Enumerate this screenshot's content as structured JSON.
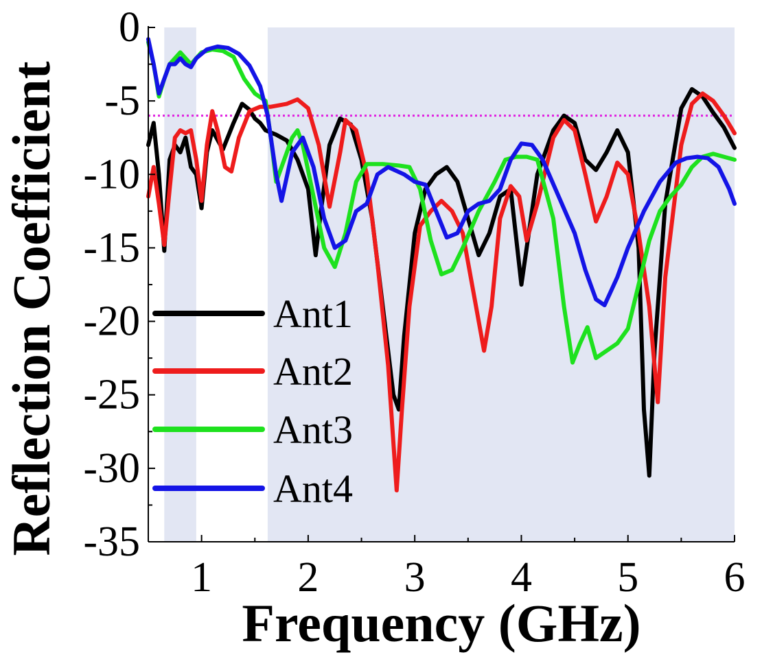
{
  "chart_data": {
    "type": "line",
    "xlabel": "Frequency (GHz)",
    "ylabel": "Reflection Coefficient",
    "xlim": [
      0.5,
      6
    ],
    "ylim": [
      -35,
      0
    ],
    "xticks": [
      1,
      2,
      3,
      4,
      5,
      6
    ],
    "yticks": [
      0,
      -5,
      -10,
      -15,
      -20,
      -25,
      -30,
      -35
    ],
    "xtick_labels": [
      "1",
      "2",
      "3",
      "4",
      "5",
      "6"
    ],
    "ytick_labels": [
      "0",
      "-5",
      "-10",
      "-15",
      "-20",
      "-25",
      "-30",
      "-35"
    ],
    "threshold": {
      "value": -6,
      "color": "#e020e0",
      "style": "dotted"
    },
    "shaded_bands": [
      {
        "from": 0.65,
        "to": 0.95,
        "color": "#e2e6f3"
      },
      {
        "from": 1.62,
        "to": 6.0,
        "color": "#e2e6f3"
      }
    ],
    "legend": {
      "position": "lower-left"
    },
    "series": [
      {
        "name": "Ant1",
        "color": "#000000",
        "points": [
          [
            0.5,
            -8
          ],
          [
            0.55,
            -6.5
          ],
          [
            0.6,
            -10
          ],
          [
            0.65,
            -15.2
          ],
          [
            0.7,
            -9
          ],
          [
            0.75,
            -8
          ],
          [
            0.8,
            -8.5
          ],
          [
            0.85,
            -7.5
          ],
          [
            0.9,
            -9.5
          ],
          [
            0.95,
            -10
          ],
          [
            1.0,
            -12.3
          ],
          [
            1.05,
            -8.5
          ],
          [
            1.1,
            -7
          ],
          [
            1.2,
            -8.3
          ],
          [
            1.3,
            -6.5
          ],
          [
            1.38,
            -5.2
          ],
          [
            1.45,
            -5.6
          ],
          [
            1.5,
            -6.2
          ],
          [
            1.55,
            -6.5
          ],
          [
            1.6,
            -7
          ],
          [
            1.7,
            -7.3
          ],
          [
            1.8,
            -7.7
          ],
          [
            1.9,
            -9
          ],
          [
            2.0,
            -11
          ],
          [
            2.07,
            -15.5
          ],
          [
            2.12,
            -12.5
          ],
          [
            2.2,
            -8
          ],
          [
            2.3,
            -6.2
          ],
          [
            2.4,
            -6.6
          ],
          [
            2.5,
            -9
          ],
          [
            2.6,
            -13
          ],
          [
            2.7,
            -19
          ],
          [
            2.8,
            -25
          ],
          [
            2.85,
            -26
          ],
          [
            2.9,
            -21
          ],
          [
            3.0,
            -14
          ],
          [
            3.1,
            -11
          ],
          [
            3.2,
            -10
          ],
          [
            3.3,
            -9.5
          ],
          [
            3.4,
            -10.5
          ],
          [
            3.5,
            -13
          ],
          [
            3.6,
            -15.5
          ],
          [
            3.7,
            -14
          ],
          [
            3.8,
            -11.5
          ],
          [
            3.9,
            -11
          ],
          [
            4.0,
            -17.5
          ],
          [
            4.05,
            -15
          ],
          [
            4.15,
            -10
          ],
          [
            4.3,
            -7
          ],
          [
            4.4,
            -6
          ],
          [
            4.5,
            -6.5
          ],
          [
            4.6,
            -9
          ],
          [
            4.7,
            -9.7
          ],
          [
            4.8,
            -8.5
          ],
          [
            4.9,
            -7
          ],
          [
            5.0,
            -8.5
          ],
          [
            5.1,
            -15
          ],
          [
            5.15,
            -26
          ],
          [
            5.2,
            -30.5
          ],
          [
            5.25,
            -22
          ],
          [
            5.35,
            -12
          ],
          [
            5.5,
            -5.5
          ],
          [
            5.6,
            -4.2
          ],
          [
            5.7,
            -4.7
          ],
          [
            5.8,
            -5.8
          ],
          [
            5.9,
            -6.8
          ],
          [
            6.0,
            -8.2
          ]
        ]
      },
      {
        "name": "Ant2",
        "color": "#ee1c1c",
        "points": [
          [
            0.5,
            -11.5
          ],
          [
            0.55,
            -9.5
          ],
          [
            0.6,
            -12
          ],
          [
            0.65,
            -14.8
          ],
          [
            0.7,
            -11
          ],
          [
            0.75,
            -7.5
          ],
          [
            0.8,
            -7
          ],
          [
            0.85,
            -7.2
          ],
          [
            0.9,
            -7
          ],
          [
            0.95,
            -9
          ],
          [
            1.0,
            -11.8
          ],
          [
            1.05,
            -8
          ],
          [
            1.1,
            -5.7
          ],
          [
            1.15,
            -7
          ],
          [
            1.22,
            -9.5
          ],
          [
            1.28,
            -9.8
          ],
          [
            1.35,
            -7.5
          ],
          [
            1.45,
            -5.7
          ],
          [
            1.55,
            -5.4
          ],
          [
            1.65,
            -5.4
          ],
          [
            1.8,
            -5.2
          ],
          [
            1.9,
            -4.9
          ],
          [
            2.0,
            -5.5
          ],
          [
            2.1,
            -8
          ],
          [
            2.2,
            -12.2
          ],
          [
            2.3,
            -8.5
          ],
          [
            2.35,
            -6.3
          ],
          [
            2.45,
            -7
          ],
          [
            2.55,
            -10
          ],
          [
            2.65,
            -16
          ],
          [
            2.75,
            -23
          ],
          [
            2.83,
            -31.5
          ],
          [
            2.88,
            -26
          ],
          [
            2.95,
            -19
          ],
          [
            3.05,
            -13.5
          ],
          [
            3.15,
            -12.5
          ],
          [
            3.25,
            -11.8
          ],
          [
            3.35,
            -12.5
          ],
          [
            3.45,
            -14
          ],
          [
            3.55,
            -18
          ],
          [
            3.65,
            -22
          ],
          [
            3.72,
            -19
          ],
          [
            3.8,
            -13
          ],
          [
            3.9,
            -10.8
          ],
          [
            3.98,
            -11.5
          ],
          [
            4.05,
            -14.5
          ],
          [
            4.15,
            -12
          ],
          [
            4.3,
            -7.5
          ],
          [
            4.4,
            -6.3
          ],
          [
            4.5,
            -7
          ],
          [
            4.6,
            -10
          ],
          [
            4.7,
            -13.2
          ],
          [
            4.8,
            -11.5
          ],
          [
            4.9,
            -9.2
          ],
          [
            5.0,
            -10
          ],
          [
            5.1,
            -14
          ],
          [
            5.2,
            -19
          ],
          [
            5.28,
            -25.5
          ],
          [
            5.35,
            -17
          ],
          [
            5.5,
            -8
          ],
          [
            5.6,
            -5.2
          ],
          [
            5.7,
            -4.5
          ],
          [
            5.8,
            -5
          ],
          [
            5.9,
            -6
          ],
          [
            6.0,
            -7.2
          ]
        ]
      },
      {
        "name": "Ant3",
        "color": "#1ee11e",
        "points": [
          [
            0.5,
            -1
          ],
          [
            0.55,
            -2.5
          ],
          [
            0.6,
            -4.7
          ],
          [
            0.65,
            -3.5
          ],
          [
            0.7,
            -2.5
          ],
          [
            0.8,
            -1.7
          ],
          [
            0.85,
            -2.1
          ],
          [
            0.9,
            -2.5
          ],
          [
            1.0,
            -1.7
          ],
          [
            1.1,
            -1.5
          ],
          [
            1.2,
            -1.6
          ],
          [
            1.3,
            -2
          ],
          [
            1.4,
            -3.5
          ],
          [
            1.5,
            -4.5
          ],
          [
            1.6,
            -5
          ],
          [
            1.65,
            -7.5
          ],
          [
            1.7,
            -10.5
          ],
          [
            1.75,
            -9.5
          ],
          [
            1.85,
            -7.5
          ],
          [
            1.9,
            -7
          ],
          [
            1.95,
            -8
          ],
          [
            2.05,
            -11.5
          ],
          [
            2.15,
            -15
          ],
          [
            2.25,
            -16.3
          ],
          [
            2.35,
            -14
          ],
          [
            2.45,
            -10.5
          ],
          [
            2.55,
            -9.3
          ],
          [
            2.7,
            -9.3
          ],
          [
            2.85,
            -9.4
          ],
          [
            2.95,
            -9.5
          ],
          [
            3.05,
            -11
          ],
          [
            3.15,
            -14.5
          ],
          [
            3.25,
            -16.8
          ],
          [
            3.35,
            -16.5
          ],
          [
            3.45,
            -15
          ],
          [
            3.6,
            -12.5
          ],
          [
            3.75,
            -10.5
          ],
          [
            3.85,
            -9
          ],
          [
            3.95,
            -8.8
          ],
          [
            4.05,
            -8.8
          ],
          [
            4.15,
            -9
          ],
          [
            4.3,
            -13
          ],
          [
            4.4,
            -19
          ],
          [
            4.48,
            -22.8
          ],
          [
            4.55,
            -21.5
          ],
          [
            4.62,
            -20.4
          ],
          [
            4.7,
            -22.5
          ],
          [
            4.8,
            -22
          ],
          [
            4.9,
            -21.5
          ],
          [
            5.0,
            -20.5
          ],
          [
            5.1,
            -17.5
          ],
          [
            5.2,
            -14.5
          ],
          [
            5.3,
            -12.5
          ],
          [
            5.4,
            -11.5
          ],
          [
            5.5,
            -10.7
          ],
          [
            5.6,
            -9.5
          ],
          [
            5.7,
            -8.8
          ],
          [
            5.8,
            -8.6
          ],
          [
            5.9,
            -8.8
          ],
          [
            6.0,
            -9
          ]
        ]
      },
      {
        "name": "Ant4",
        "color": "#1414e6",
        "points": [
          [
            0.5,
            -0.8
          ],
          [
            0.55,
            -2.5
          ],
          [
            0.6,
            -4.5
          ],
          [
            0.65,
            -3.5
          ],
          [
            0.7,
            -2.5
          ],
          [
            0.75,
            -2.5
          ],
          [
            0.8,
            -2.1
          ],
          [
            0.85,
            -2.5
          ],
          [
            0.9,
            -2.7
          ],
          [
            0.95,
            -2.1
          ],
          [
            1.05,
            -1.5
          ],
          [
            1.15,
            -1.3
          ],
          [
            1.25,
            -1.4
          ],
          [
            1.35,
            -1.8
          ],
          [
            1.45,
            -2.6
          ],
          [
            1.55,
            -4
          ],
          [
            1.62,
            -6
          ],
          [
            1.7,
            -10
          ],
          [
            1.75,
            -11.8
          ],
          [
            1.85,
            -8.5
          ],
          [
            1.95,
            -7.5
          ],
          [
            2.05,
            -9.5
          ],
          [
            2.15,
            -13
          ],
          [
            2.25,
            -15
          ],
          [
            2.35,
            -14.5
          ],
          [
            2.45,
            -12.5
          ],
          [
            2.55,
            -12
          ],
          [
            2.65,
            -10
          ],
          [
            2.75,
            -9.5
          ],
          [
            2.9,
            -10
          ],
          [
            3.0,
            -10.5
          ],
          [
            3.1,
            -10.7
          ],
          [
            3.2,
            -12.5
          ],
          [
            3.3,
            -14.3
          ],
          [
            3.4,
            -14
          ],
          [
            3.5,
            -12.5
          ],
          [
            3.6,
            -12
          ],
          [
            3.7,
            -11.8
          ],
          [
            3.8,
            -11
          ],
          [
            3.9,
            -9
          ],
          [
            4.0,
            -7.9
          ],
          [
            4.1,
            -8
          ],
          [
            4.2,
            -9
          ],
          [
            4.35,
            -11.5
          ],
          [
            4.5,
            -14
          ],
          [
            4.6,
            -16.5
          ],
          [
            4.7,
            -18.5
          ],
          [
            4.78,
            -18.9
          ],
          [
            4.9,
            -17
          ],
          [
            5.0,
            -15
          ],
          [
            5.15,
            -12.5
          ],
          [
            5.3,
            -10.5
          ],
          [
            5.45,
            -9.2
          ],
          [
            5.55,
            -8.9
          ],
          [
            5.65,
            -8.8
          ],
          [
            5.75,
            -8.9
          ],
          [
            5.85,
            -9.5
          ],
          [
            5.95,
            -11
          ],
          [
            6.0,
            -12
          ]
        ]
      }
    ]
  }
}
